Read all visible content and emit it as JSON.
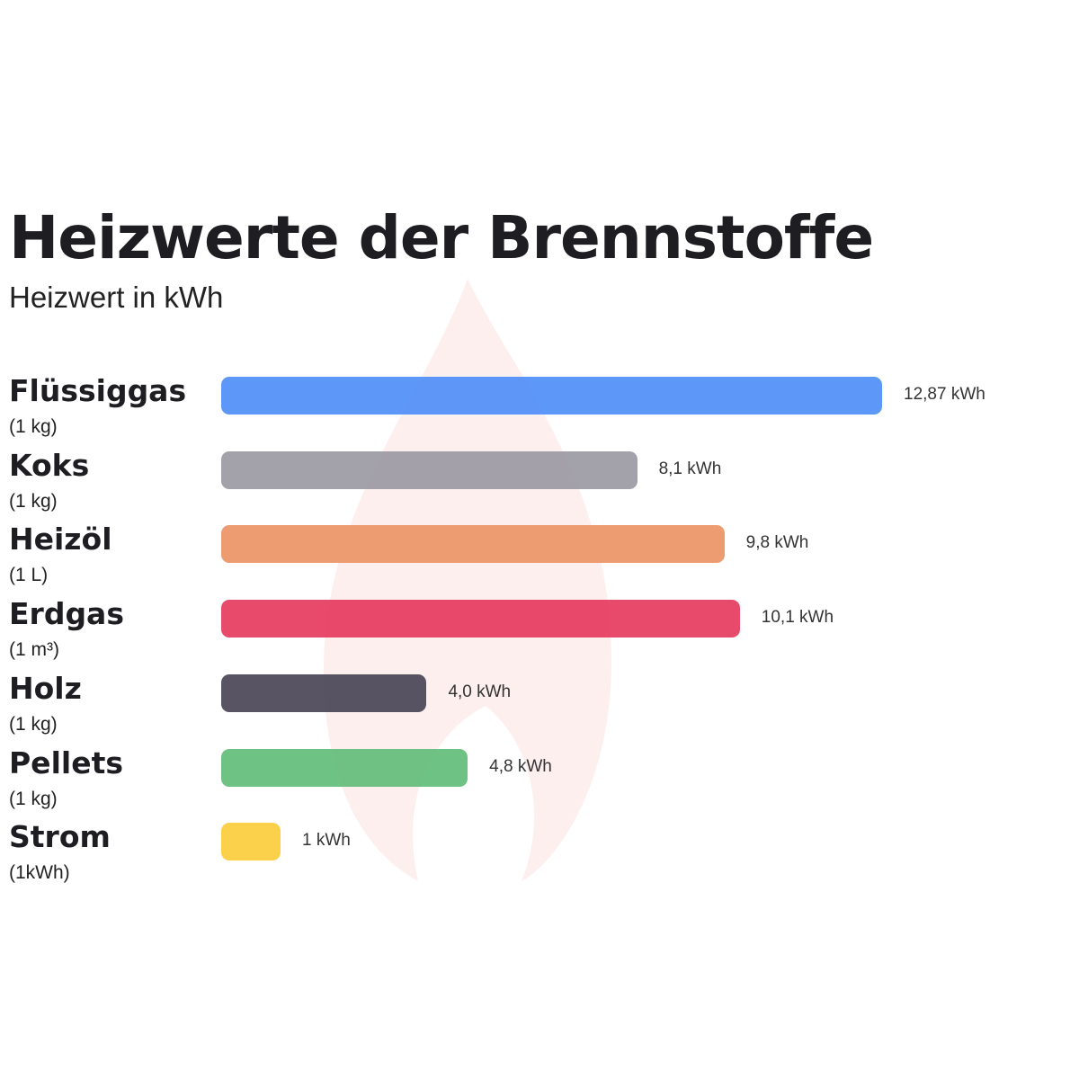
{
  "chart_data": {
    "type": "bar",
    "orientation": "horizontal",
    "title": "Heizwerte der Brennstoffe",
    "subtitle": "Heizwert in kWh",
    "xlabel": "",
    "ylabel": "",
    "grid": false,
    "xlim": [
      0,
      12.87
    ],
    "categories": [
      "Flüssiggas",
      "Koks",
      "Heizöl",
      "Erdgas",
      "Holz",
      "Pellets",
      "Strom"
    ],
    "units": [
      "(1 kg)",
      "(1 kg)",
      "(1 L)",
      "(1 m³)",
      "(1 kg)",
      "(1 kg)",
      "(1kWh)"
    ],
    "values": [
      12.87,
      8.1,
      9.8,
      10.1,
      4.0,
      4.8,
      1
    ],
    "value_labels": [
      "12,87 kWh",
      "8,1 kWh",
      "9,8 kWh",
      "10,1 kWh",
      "4,0 kWh",
      "4,8 kWh",
      "1 kWh"
    ],
    "colors": [
      "#4f8ef7",
      "#9b99a3",
      "#eb9466",
      "#e63b60",
      "#4a4556",
      "#62bd78",
      "#fbcd3c"
    ]
  }
}
